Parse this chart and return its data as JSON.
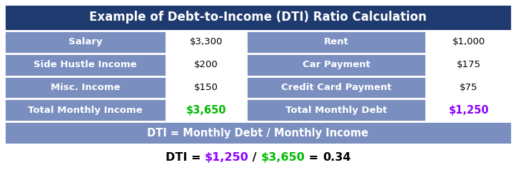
{
  "title": "Example of Debt-to-Income (DTI) Ratio Calculation",
  "title_bg": "#1e3a6e",
  "title_color": "#ffffff",
  "row_bg_dark": "#7a8ec0",
  "row_bg_light": "#ffffff",
  "formula_row_bg": "#7a8ec0",
  "formula_row_color": "#ffffff",
  "bottom_row_bg": "#ffffff",
  "border_color": "#ffffff",
  "outer_bg": "#ffffff",
  "left_col_labels": [
    "Salary",
    "Side Hustle Income",
    "Misc. Income",
    "Total Monthly Income"
  ],
  "left_col_values": [
    "$3,300",
    "$200",
    "$150",
    "$3,650"
  ],
  "right_col_labels": [
    "Rent",
    "Car Payment",
    "Credit Card Payment",
    "Total Monthly Debt"
  ],
  "right_col_values": [
    "$1,000",
    "$175",
    "$75",
    "$1,250"
  ],
  "formula_text": "DTI = Monthly Debt / Monthly Income",
  "total_income_color": "#00bb00",
  "total_debt_color": "#8b00ff",
  "dti_debt_color": "#8b00ff",
  "dti_income_color": "#00bb00",
  "figwidth": 7.23,
  "figheight": 2.45,
  "dpi": 100
}
